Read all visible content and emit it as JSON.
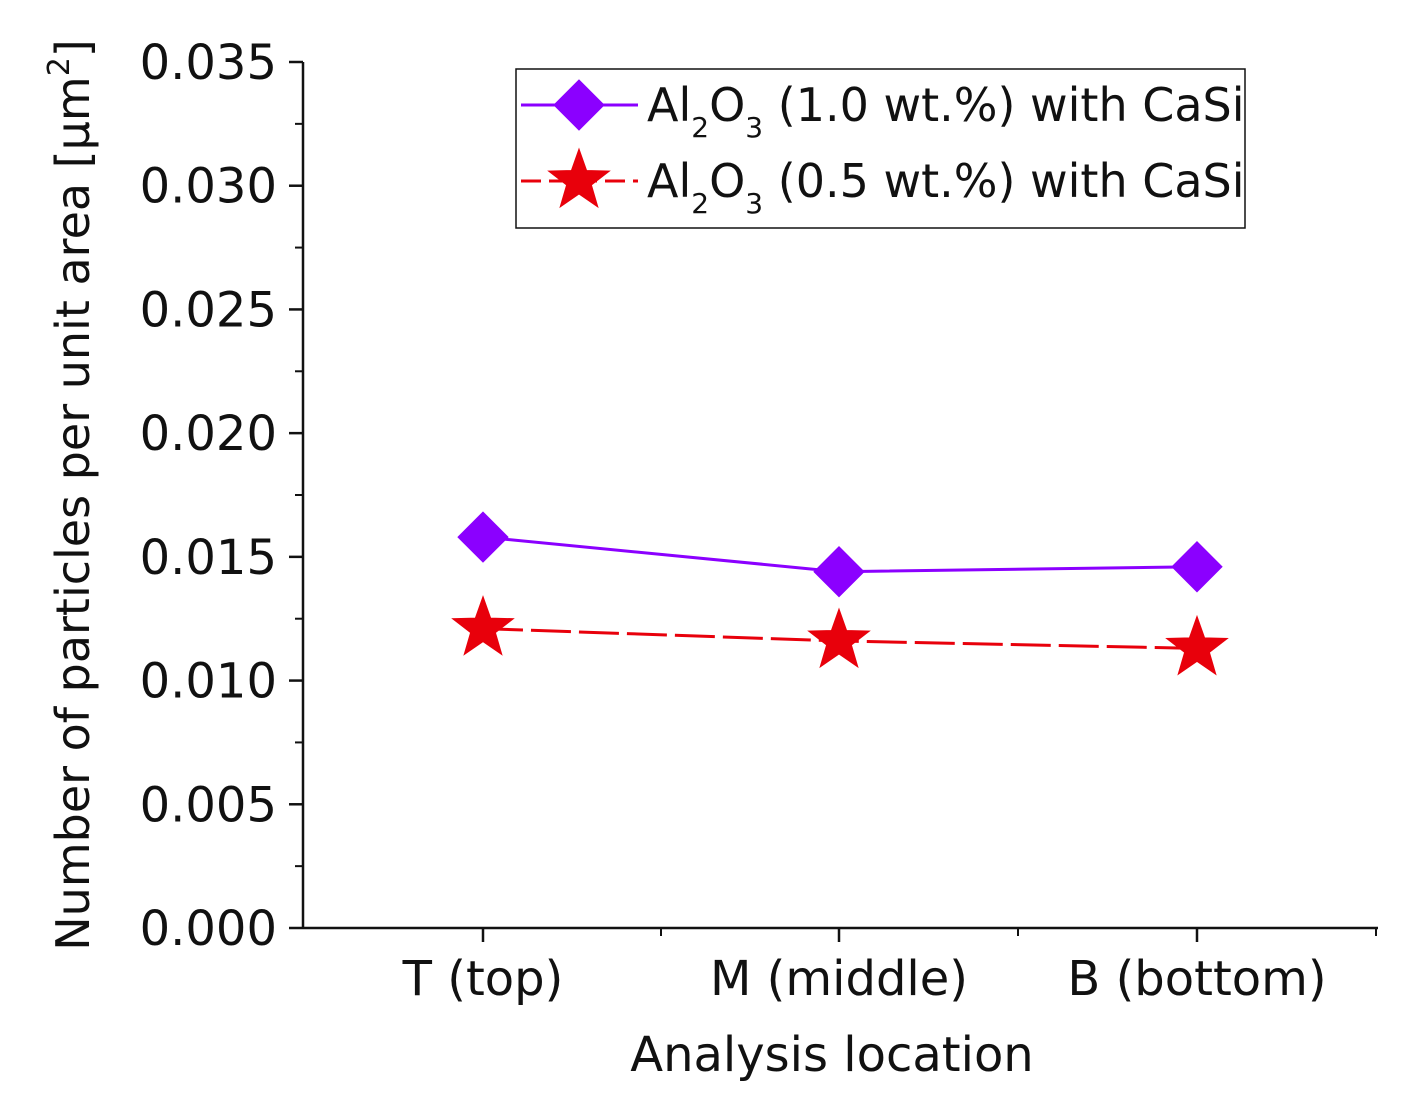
{
  "chart_data": {
    "type": "line",
    "xlabel": "Analysis location",
    "ylabel": "Number of particles per unit area [µm",
    "ylabel_sup": "2",
    "ylabel_end": "]",
    "categories": [
      "T (top)",
      "M (middle)",
      "B (bottom)"
    ],
    "ylim": [
      0,
      0.035
    ],
    "yticks": [
      "0.000",
      "0.005",
      "0.010",
      "0.015",
      "0.020",
      "0.025",
      "0.030",
      "0.035"
    ],
    "legend_position": "top-center",
    "grid": false,
    "series": [
      {
        "name": "Al2O3 (1.0 wt.%) with CaSi",
        "legend": {
          "a": "Al",
          "sub1": "2",
          "b": "O",
          "sub2": "3",
          "rest": " (1.0 wt.%) with CaSi"
        },
        "values": [
          0.0158,
          0.0144,
          0.0146
        ],
        "color": "#8b00ff",
        "marker": "diamond",
        "line": "solid"
      },
      {
        "name": "Al2O3 (0.5 wt.%) with CaSi",
        "legend": {
          "a": "Al",
          "sub1": "2",
          "b": "O",
          "sub2": "3",
          "rest": " (0.5 wt.%) with CaSi"
        },
        "values": [
          0.0121,
          0.0116,
          0.0113
        ],
        "color": "#e8000b",
        "marker": "star",
        "line": "dashed"
      }
    ]
  }
}
